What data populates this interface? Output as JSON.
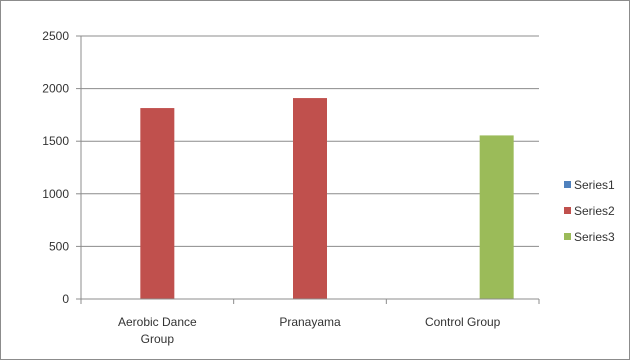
{
  "chart_data": {
    "type": "bar",
    "categories": [
      "Aerobic Dance Group",
      "Pranayama",
      "Control Group"
    ],
    "category_lines": [
      [
        "Aerobic Dance",
        "Group"
      ],
      [
        "Pranayama"
      ],
      [
        "Control Group"
      ]
    ],
    "series": [
      {
        "name": "Series1",
        "color": "#4f81bd",
        "values": [
          0,
          0,
          0
        ]
      },
      {
        "name": "Series2",
        "color": "#c0504d",
        "values": [
          1815,
          1910,
          0
        ]
      },
      {
        "name": "Series3",
        "color": "#9bbb59",
        "values": [
          0,
          0,
          1555
        ]
      }
    ],
    "yticks": [
      0,
      500,
      1000,
      1500,
      2000,
      2500
    ],
    "ylim": [
      0,
      2500
    ],
    "grid": true,
    "legend_position": "right",
    "title": "",
    "xlabel": "",
    "ylabel": ""
  }
}
